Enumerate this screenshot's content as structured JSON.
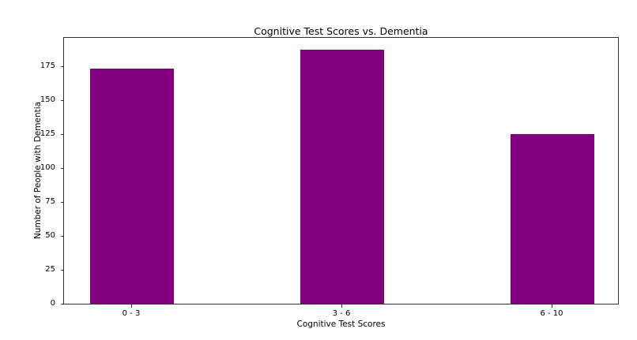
{
  "chart_data": {
    "type": "bar",
    "title": "Cognitive Test Scores vs. Dementia",
    "xlabel": "Cognitive Test Scores",
    "ylabel": "Number of People with Dementia",
    "categories": [
      "0 - 3",
      "3 - 6",
      "6 - 10"
    ],
    "values": [
      173,
      187,
      125
    ],
    "ylim": [
      0,
      197
    ],
    "yticks": [
      0,
      25,
      50,
      75,
      100,
      125,
      150,
      175
    ],
    "bar_color": "#800080",
    "grid": false,
    "legend": null
  }
}
